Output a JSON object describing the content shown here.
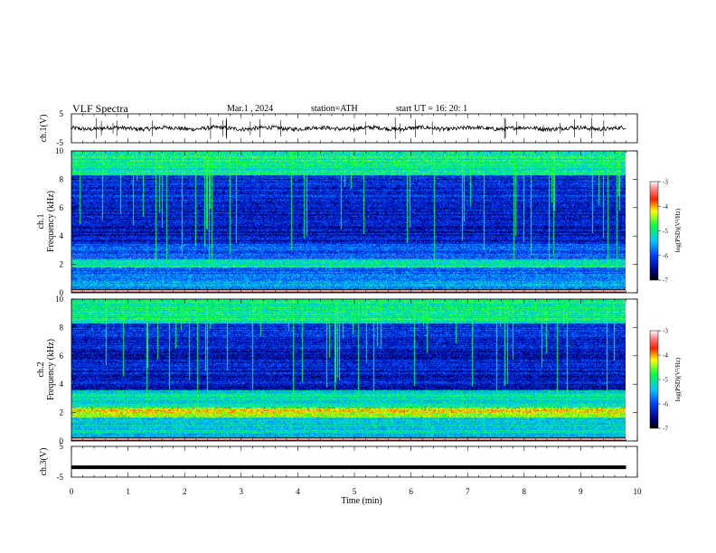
{
  "header": {
    "title": "VLF  Spectra",
    "date": "Mar.1  , 2024",
    "station": "station=ATH",
    "start": "start  UT  =   16: 20: 1"
  },
  "chart_data": [
    {
      "type": "line",
      "panel": "ch1",
      "ylabel": "ch.1(V)",
      "ylim": [
        -5,
        5
      ],
      "yticks": [
        "5",
        "-5"
      ],
      "x_range_min": [
        0,
        9.8
      ],
      "trace_level_V": 0,
      "color": "#000000"
    },
    {
      "type": "heatmap",
      "panel": "ch1-spectrogram",
      "ylabel_line1": "ch.1",
      "ylabel_line2": "Frequency  (kHz)",
      "ylim": [
        0,
        10
      ],
      "yticks": [
        "0",
        "2",
        "4",
        "6",
        "8",
        "10"
      ],
      "colorbar": {
        "label": "log(PSD)(V²/Hz)",
        "range": [
          -7,
          -3
        ],
        "ticks": [
          "-3",
          "-4",
          "-5",
          "-6",
          "-7"
        ]
      }
    },
    {
      "type": "heatmap",
      "panel": "ch2-spectrogram",
      "ylabel_line1": "ch.2",
      "ylabel_line2": "Frequency  (kHz)",
      "ylim": [
        0,
        10
      ],
      "yticks": [
        "0",
        "2",
        "4",
        "6",
        "8",
        "10"
      ],
      "colorbar": {
        "label": "log(PSD)(V²/Hz)",
        "range": [
          -7,
          -3
        ],
        "ticks": [
          "-3",
          "-4",
          "-5",
          "-6",
          "-7"
        ]
      }
    },
    {
      "type": "line",
      "panel": "ch3",
      "ylabel": "ch.3(V)",
      "ylim": [
        -5,
        5
      ],
      "yticks": [
        "5",
        "-5"
      ],
      "x_range_min": [
        0,
        9.8
      ],
      "trace_level_V": -1.8,
      "color": "#000000"
    }
  ],
  "xaxis": {
    "label": "Time  (min)",
    "range": [
      0,
      10
    ],
    "ticks": [
      "0",
      "1",
      "2",
      "3",
      "4",
      "5",
      "6",
      "7",
      "8",
      "9",
      "10"
    ]
  }
}
